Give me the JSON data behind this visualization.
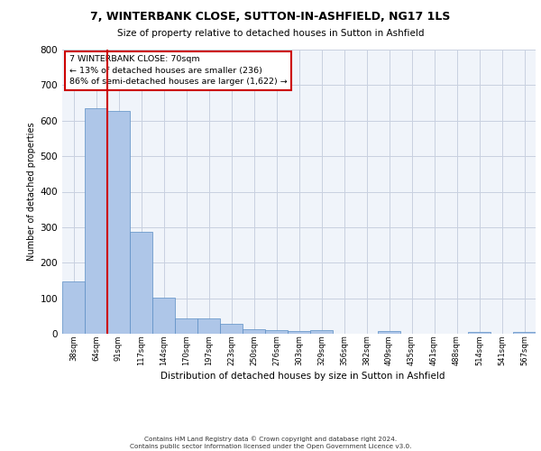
{
  "title": "7, WINTERBANK CLOSE, SUTTON-IN-ASHFIELD, NG17 1LS",
  "subtitle": "Size of property relative to detached houses in Sutton in Ashfield",
  "xlabel": "Distribution of detached houses by size in Sutton in Ashfield",
  "ylabel": "Number of detached properties",
  "categories": [
    "38sqm",
    "64sqm",
    "91sqm",
    "117sqm",
    "144sqm",
    "170sqm",
    "197sqm",
    "223sqm",
    "250sqm",
    "276sqm",
    "303sqm",
    "329sqm",
    "356sqm",
    "382sqm",
    "409sqm",
    "435sqm",
    "461sqm",
    "488sqm",
    "514sqm",
    "541sqm",
    "567sqm"
  ],
  "values": [
    148,
    635,
    627,
    286,
    101,
    44,
    43,
    28,
    13,
    11,
    8,
    11,
    0,
    0,
    7,
    0,
    0,
    0,
    6,
    0,
    6
  ],
  "bar_color": "#aec6e8",
  "bar_edge_color": "#5b8ec4",
  "grid_color": "#c8d0e0",
  "background_color": "#f0f4fa",
  "annotation_box_text": "7 WINTERBANK CLOSE: 70sqm\n← 13% of detached houses are smaller (236)\n86% of semi-detached houses are larger (1,622) →",
  "annotation_box_color": "#cc0000",
  "ylim": [
    0,
    800
  ],
  "yticks": [
    0,
    100,
    200,
    300,
    400,
    500,
    600,
    700,
    800
  ],
  "red_line_x": 1.5,
  "footer_line1": "Contains HM Land Registry data © Crown copyright and database right 2024.",
  "footer_line2": "Contains public sector information licensed under the Open Government Licence v3.0."
}
